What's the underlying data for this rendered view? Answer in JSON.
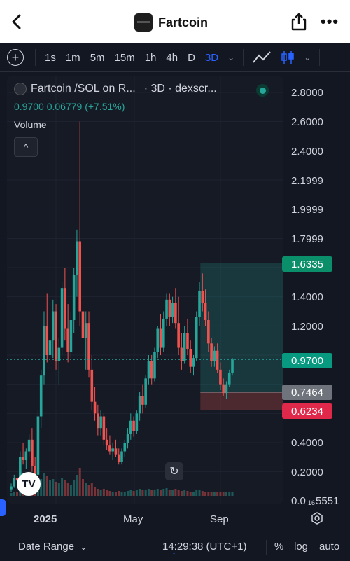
{
  "header": {
    "title": "Fartcoin",
    "back_icon": "chevron-left-icon",
    "share_icon": "share-icon",
    "more_label": "•••"
  },
  "toolbar": {
    "add_icon": "plus-circle-icon",
    "timeframes": [
      "1s",
      "1m",
      "5m",
      "15m",
      "1h",
      "4h",
      "D",
      "3D"
    ],
    "active_timeframe": "3D",
    "accent": "#2962ff"
  },
  "legend": {
    "series_title": "Fartcoin /SOL on R...",
    "series_meta": "· 3D · dexscr...",
    "ohlc": "0.9700  0.06779 (+7.51%)",
    "volume_label": "Volume",
    "collapse_label": "^"
  },
  "price_axis": {
    "labels": [
      "2.8000",
      "2.6000",
      "2.4000",
      "2.1999",
      "1.9999",
      "1.7999",
      "1.4000",
      "1.2000",
      "0.4000",
      "0.2000",
      "0.0"
    ],
    "tags": [
      {
        "label": "1.6335",
        "color": "#0b8f6a"
      },
      {
        "label": "0.9700",
        "color": "#089981"
      },
      {
        "label": "0.7464",
        "color": "#6f737c"
      },
      {
        "label": "0.6234",
        "color": "#e0294a"
      }
    ],
    "corner_value": "5551",
    "corner_small": "16"
  },
  "time_axis": {
    "labels": [
      "2025",
      "May",
      "Sep"
    ]
  },
  "bottom_bar": {
    "date_range": "Date Range",
    "time": "14:29:38 (UTC+1)",
    "percent": "%",
    "log": "log",
    "auto": "auto"
  },
  "colors": {
    "up": "#26a69a",
    "down": "#ef5350",
    "background": "#131722"
  },
  "chart_data": {
    "type": "candlestick",
    "title": "Fartcoin /SOL on R...",
    "timeframe": "3D",
    "last_price": 0.97,
    "change": 0.06779,
    "change_pct": 7.51,
    "ylim": [
      0,
      2.8
    ],
    "position": {
      "entry": 0.7464,
      "target": 1.6335,
      "stop": 0.6234
    },
    "x_ticks": [
      "2025",
      "May",
      "Sep"
    ],
    "candles": [
      [
        0.08,
        0.12,
        0.06,
        0.1
      ],
      [
        0.1,
        0.18,
        0.09,
        0.16
      ],
      [
        0.16,
        0.2,
        0.12,
        0.14
      ],
      [
        0.14,
        0.34,
        0.13,
        0.3
      ],
      [
        0.3,
        0.4,
        0.25,
        0.28
      ],
      [
        0.28,
        0.36,
        0.22,
        0.34
      ],
      [
        0.34,
        0.46,
        0.3,
        0.42
      ],
      [
        0.42,
        0.5,
        0.2,
        0.24
      ],
      [
        0.24,
        0.3,
        0.14,
        0.18
      ],
      [
        0.18,
        0.62,
        0.17,
        0.58
      ],
      [
        0.58,
        0.9,
        0.5,
        0.86
      ],
      [
        0.86,
        1.3,
        0.8,
        1.2
      ],
      [
        1.2,
        1.42,
        0.95,
        1.0
      ],
      [
        1.0,
        1.2,
        0.82,
        1.1
      ],
      [
        1.1,
        1.38,
        0.98,
        1.3
      ],
      [
        1.3,
        1.35,
        0.9,
        0.96
      ],
      [
        0.96,
        1.12,
        0.8,
        1.05
      ],
      [
        1.05,
        1.5,
        1.0,
        1.46
      ],
      [
        1.46,
        1.6,
        1.1,
        1.18
      ],
      [
        1.18,
        1.35,
        0.95,
        1.02
      ],
      [
        1.02,
        1.3,
        0.98,
        1.24
      ],
      [
        1.24,
        1.6,
        1.15,
        1.55
      ],
      [
        1.55,
        1.86,
        1.4,
        1.78
      ],
      [
        1.78,
        2.6,
        1.2,
        1.3
      ],
      [
        1.3,
        1.55,
        1.05,
        1.12
      ],
      [
        1.12,
        1.3,
        0.9,
        1.22
      ],
      [
        1.22,
        1.3,
        0.85,
        0.9
      ],
      [
        0.9,
        1.0,
        0.62,
        0.68
      ],
      [
        0.68,
        0.78,
        0.55,
        0.6
      ],
      [
        0.6,
        0.66,
        0.45,
        0.5
      ],
      [
        0.5,
        0.62,
        0.45,
        0.58
      ],
      [
        0.58,
        0.6,
        0.38,
        0.42
      ],
      [
        0.42,
        0.5,
        0.35,
        0.38
      ],
      [
        0.38,
        0.45,
        0.32,
        0.34
      ],
      [
        0.34,
        0.4,
        0.28,
        0.36
      ],
      [
        0.36,
        0.42,
        0.3,
        0.32
      ],
      [
        0.32,
        0.36,
        0.25,
        0.27
      ],
      [
        0.27,
        0.36,
        0.25,
        0.34
      ],
      [
        0.34,
        0.42,
        0.3,
        0.4
      ],
      [
        0.4,
        0.5,
        0.36,
        0.46
      ],
      [
        0.46,
        0.6,
        0.42,
        0.55
      ],
      [
        0.55,
        0.58,
        0.44,
        0.48
      ],
      [
        0.48,
        0.62,
        0.46,
        0.6
      ],
      [
        0.6,
        0.75,
        0.55,
        0.72
      ],
      [
        0.72,
        0.8,
        0.6,
        0.66
      ],
      [
        0.66,
        0.86,
        0.64,
        0.84
      ],
      [
        0.84,
        1.0,
        0.8,
        0.96
      ],
      [
        0.96,
        1.0,
        0.8,
        0.84
      ],
      [
        0.84,
        1.05,
        0.82,
        1.02
      ],
      [
        1.02,
        1.2,
        0.98,
        1.18
      ],
      [
        1.18,
        1.28,
        1.0,
        1.05
      ],
      [
        1.05,
        1.3,
        1.02,
        1.25
      ],
      [
        1.25,
        1.42,
        1.2,
        1.38
      ],
      [
        1.38,
        1.42,
        1.2,
        1.26
      ],
      [
        1.26,
        1.4,
        1.22,
        1.36
      ],
      [
        1.36,
        1.46,
        1.18,
        1.22
      ],
      [
        1.22,
        1.4,
        1.0,
        1.05
      ],
      [
        1.05,
        1.15,
        0.9,
        0.96
      ],
      [
        0.96,
        1.2,
        0.94,
        1.15
      ],
      [
        1.15,
        1.25,
        1.0,
        1.04
      ],
      [
        1.04,
        1.1,
        0.88,
        0.92
      ],
      [
        0.92,
        1.0,
        0.86,
        0.98
      ],
      [
        0.98,
        1.3,
        0.96,
        1.26
      ],
      [
        1.26,
        1.5,
        1.2,
        1.44
      ],
      [
        1.44,
        1.56,
        1.3,
        1.36
      ],
      [
        1.36,
        1.45,
        1.2,
        1.24
      ],
      [
        1.24,
        1.3,
        1.02,
        1.08
      ],
      [
        1.08,
        1.12,
        0.92,
        0.96
      ],
      [
        0.96,
        1.06,
        0.92,
        1.03
      ],
      [
        1.03,
        1.08,
        0.88,
        0.9
      ],
      [
        0.9,
        0.95,
        0.76,
        0.8
      ],
      [
        0.8,
        0.84,
        0.72,
        0.74
      ],
      [
        0.74,
        0.82,
        0.7,
        0.8
      ],
      [
        0.8,
        0.9,
        0.78,
        0.88
      ],
      [
        0.88,
        0.98,
        0.86,
        0.97
      ]
    ],
    "volumes": [
      0.2,
      0.3,
      0.25,
      0.5,
      0.4,
      0.45,
      0.6,
      0.55,
      0.4,
      0.8,
      1.2,
      1.6,
      1.4,
      1.1,
      1.2,
      1.0,
      0.9,
      1.3,
      1.1,
      0.9,
      0.8,
      1.1,
      1.5,
      2.0,
      1.2,
      0.9,
      0.8,
      0.9,
      0.6,
      0.5,
      0.4,
      0.5,
      0.4,
      0.35,
      0.3,
      0.3,
      0.35,
      0.3,
      0.3,
      0.35,
      0.4,
      0.35,
      0.4,
      0.5,
      0.4,
      0.45,
      0.5,
      0.4,
      0.45,
      0.5,
      0.4,
      0.5,
      0.55,
      0.4,
      0.45,
      0.5,
      0.45,
      0.35,
      0.4,
      0.35,
      0.3,
      0.3,
      0.4,
      0.45,
      0.35,
      0.3,
      0.3,
      0.25,
      0.25,
      0.25,
      0.3,
      0.3,
      0.25,
      0.25,
      0.3
    ]
  }
}
